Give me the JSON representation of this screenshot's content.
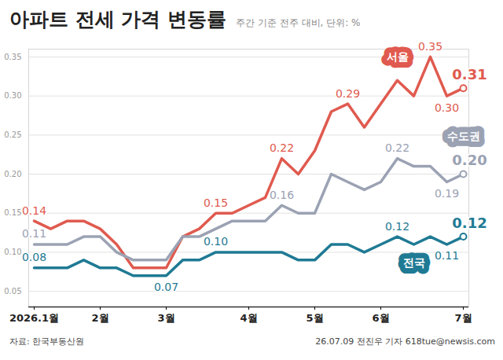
{
  "chart_data": {
    "type": "line",
    "title": "아파트 전세 가격 변동률",
    "subtitle": "주간 기준 전주 대비, 단위: %",
    "source": "자료: 한국부동산원",
    "credit": "26.07.09 전진우 기자 618tue@newsis.com",
    "categories": [
      "2026.1월",
      null,
      null,
      null,
      "2월",
      null,
      null,
      null,
      "3월",
      null,
      null,
      null,
      null,
      "4월",
      null,
      null,
      null,
      "5월",
      null,
      null,
      null,
      "6월",
      null,
      null,
      null,
      null,
      "7월"
    ],
    "series": [
      {
        "name": "서울",
        "color": "#e05a4f",
        "values": [
          0.14,
          0.13,
          0.14,
          0.14,
          0.13,
          0.11,
          0.08,
          0.08,
          0.08,
          0.12,
          0.13,
          0.15,
          0.15,
          0.16,
          0.17,
          0.22,
          0.2,
          0.23,
          0.28,
          0.29,
          0.26,
          0.29,
          0.32,
          0.3,
          0.35,
          0.3,
          0.31
        ],
        "value_labels": [
          "0.14",
          null,
          null,
          null,
          null,
          null,
          null,
          null,
          null,
          null,
          null,
          "0.15",
          null,
          null,
          null,
          "0.22",
          null,
          null,
          null,
          "0.29",
          null,
          null,
          null,
          null,
          "0.35",
          "0.30",
          "0.31"
        ]
      },
      {
        "name": "수도권",
        "color": "#9ba2b3",
        "values": [
          0.11,
          0.11,
          0.11,
          0.12,
          0.12,
          0.1,
          0.09,
          0.09,
          0.09,
          0.12,
          0.12,
          0.13,
          0.14,
          0.14,
          0.14,
          0.16,
          0.15,
          0.15,
          0.2,
          0.19,
          0.18,
          0.19,
          0.22,
          0.21,
          0.21,
          0.19,
          0.2
        ],
        "value_labels": [
          "0.11",
          null,
          null,
          null,
          null,
          null,
          null,
          null,
          null,
          null,
          null,
          null,
          null,
          null,
          null,
          "0.16",
          null,
          null,
          null,
          null,
          null,
          null,
          "0.22",
          null,
          null,
          "0.19",
          "0.20"
        ]
      },
      {
        "name": "전국",
        "color": "#1f7a94",
        "values": [
          0.08,
          0.08,
          0.08,
          0.09,
          0.08,
          0.08,
          0.07,
          0.07,
          0.07,
          0.09,
          0.09,
          0.1,
          0.1,
          0.1,
          0.1,
          0.1,
          0.09,
          0.09,
          0.11,
          0.11,
          0.1,
          0.11,
          0.12,
          0.11,
          0.12,
          0.11,
          0.12
        ],
        "value_labels": [
          "0.08",
          null,
          null,
          null,
          null,
          null,
          null,
          null,
          "0.07",
          null,
          null,
          "0.10",
          null,
          null,
          null,
          null,
          null,
          null,
          null,
          null,
          null,
          null,
          "0.12",
          null,
          null,
          "0.11",
          "0.12"
        ]
      }
    ],
    "ylim": [
      0.03,
      0.36
    ],
    "yticks": [
      {
        "value": 0.05,
        "label": "0.05"
      },
      {
        "value": 0.1,
        "label": "0.10"
      },
      {
        "value": 0.15,
        "label": "0.15"
      },
      {
        "value": 0.2,
        "label": "0.20"
      },
      {
        "value": 0.25,
        "label": "0.25"
      },
      {
        "value": 0.3,
        "label": "0.30"
      },
      {
        "value": 0.35,
        "label": "0.35"
      }
    ],
    "grid": true
  }
}
